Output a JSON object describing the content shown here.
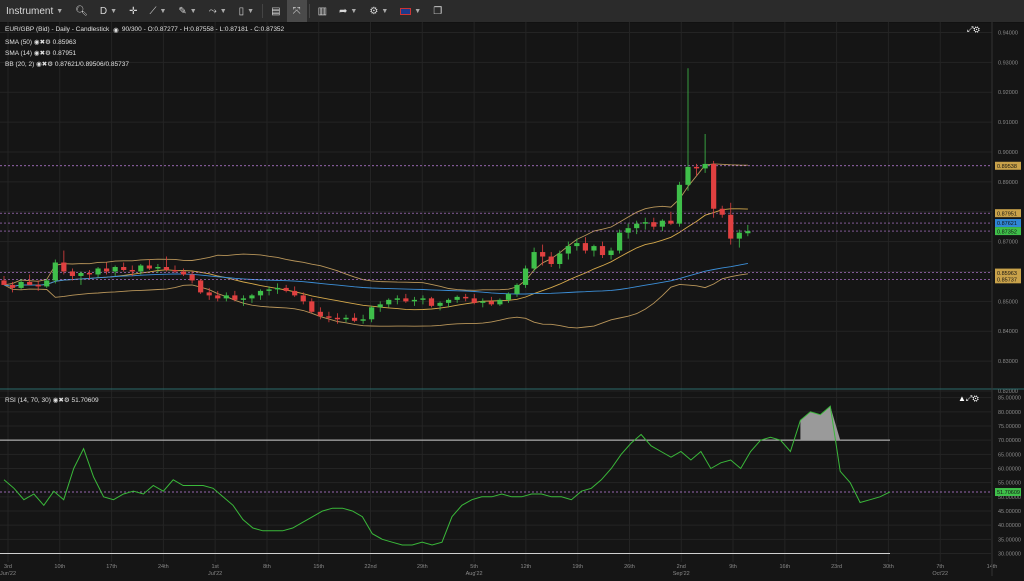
{
  "toolbar": {
    "instrument": "Instrument",
    "period": "D",
    "items": [
      "crosshair-tool",
      "draw-tool",
      "pattern-tool",
      "measure-tool",
      "template-tool",
      "layout-tool",
      "fullscreen-tool",
      "chart-type-tool",
      "share-tool",
      "indicator-tool",
      "language-tool",
      "popout-tool"
    ]
  },
  "legend": {
    "main": "EUR/GBP (Bid) - Daily - Candlestick",
    "main_values": "90/300 - O:0.87277 - H:0.87558 - L:0.87181 - C:0.87352",
    "sma50_label": "SMA (50)",
    "sma50_value": "0.85963",
    "sma14_label": "SMA (14)",
    "sma14_value": "0.87951",
    "bb_label": "BB (20, 2)",
    "bb_value": "0.87621/0.89506/0.85737",
    "rsi_label": "RSI (14, 70, 30)",
    "rsi_value": "51.70609"
  },
  "colors": {
    "up": "#3fbf4a",
    "down": "#e04040",
    "sma50": "#d4a84b",
    "sma14": "#3c8fd8",
    "bb": "#b8955a",
    "rsi": "#3ab83a",
    "dash": "#c080e0"
  },
  "chart_data": {
    "type": "candlestick",
    "instrument": "EUR/GBP (Bid)",
    "yticks": [
      "0.94000",
      "0.93000",
      "0.92000",
      "0.91000",
      "0.90000",
      "0.89000",
      "0.88000",
      "0.87000",
      "0.86000",
      "0.85000",
      "0.84000",
      "0.83000",
      "0.82000"
    ],
    "price_badges": [
      {
        "value": "0.89538",
        "color": "#c9a24a"
      },
      {
        "value": "0.87951",
        "color": "#c9a24a"
      },
      {
        "value": "0.87621",
        "color": "#2f86d6"
      },
      {
        "value": "0.87352",
        "color": "#3fbf4a"
      },
      {
        "value": "0.85963",
        "color": "#c9a24a"
      },
      {
        "value": "0.85737",
        "color": "#c9a24a"
      }
    ],
    "xticks": [
      "3rd\nJun'22",
      "10th",
      "17th",
      "24th",
      "1st\nJul'22",
      "8th",
      "15th",
      "22nd",
      "29th",
      "5th\nAug'22",
      "12th",
      "19th",
      "26th",
      "2nd\nSep'22",
      "9th",
      "16th",
      "23rd",
      "30th",
      "7th\nOct'22",
      "14th"
    ],
    "candles": [
      [
        0.857,
        0.8585,
        0.8555,
        0.8555
      ],
      [
        0.8555,
        0.8565,
        0.853,
        0.8545
      ],
      [
        0.8545,
        0.8575,
        0.854,
        0.8565
      ],
      [
        0.8565,
        0.859,
        0.8555,
        0.8555
      ],
      [
        0.8555,
        0.857,
        0.8535,
        0.855
      ],
      [
        0.855,
        0.8575,
        0.8545,
        0.857
      ],
      [
        0.857,
        0.864,
        0.856,
        0.863
      ],
      [
        0.863,
        0.867,
        0.859,
        0.86
      ],
      [
        0.86,
        0.861,
        0.857,
        0.8585
      ],
      [
        0.8585,
        0.86,
        0.8555,
        0.8595
      ],
      [
        0.8595,
        0.8605,
        0.8575,
        0.859
      ],
      [
        0.859,
        0.8615,
        0.858,
        0.861
      ],
      [
        0.861,
        0.863,
        0.859,
        0.86
      ],
      [
        0.86,
        0.862,
        0.8585,
        0.8615
      ],
      [
        0.8615,
        0.863,
        0.86,
        0.8605
      ],
      [
        0.8605,
        0.862,
        0.8585,
        0.86
      ],
      [
        0.86,
        0.8625,
        0.859,
        0.862
      ],
      [
        0.862,
        0.864,
        0.8605,
        0.861
      ],
      [
        0.861,
        0.8625,
        0.8595,
        0.8615
      ],
      [
        0.8615,
        0.865,
        0.86,
        0.8605
      ],
      [
        0.8605,
        0.862,
        0.8595,
        0.86
      ],
      [
        0.86,
        0.861,
        0.8585,
        0.859
      ],
      [
        0.859,
        0.86,
        0.856,
        0.857
      ],
      [
        0.857,
        0.8575,
        0.8525,
        0.853
      ],
      [
        0.853,
        0.8545,
        0.8505,
        0.852
      ],
      [
        0.852,
        0.8535,
        0.85,
        0.851
      ],
      [
        0.851,
        0.853,
        0.85,
        0.852
      ],
      [
        0.852,
        0.8535,
        0.85,
        0.8505
      ],
      [
        0.8505,
        0.852,
        0.8485,
        0.851
      ],
      [
        0.851,
        0.8525,
        0.8495,
        0.852
      ],
      [
        0.852,
        0.854,
        0.8505,
        0.8535
      ],
      [
        0.8535,
        0.855,
        0.852,
        0.854
      ],
      [
        0.854,
        0.856,
        0.8525,
        0.8545
      ],
      [
        0.8545,
        0.8555,
        0.853,
        0.8535
      ],
      [
        0.8535,
        0.855,
        0.8515,
        0.852
      ],
      [
        0.852,
        0.853,
        0.849,
        0.85
      ],
      [
        0.85,
        0.851,
        0.846,
        0.8465
      ],
      [
        0.8465,
        0.848,
        0.844,
        0.845
      ],
      [
        0.845,
        0.8465,
        0.843,
        0.8445
      ],
      [
        0.8445,
        0.846,
        0.8425,
        0.844
      ],
      [
        0.844,
        0.8455,
        0.843,
        0.8445
      ],
      [
        0.8445,
        0.846,
        0.843,
        0.8435
      ],
      [
        0.8435,
        0.8455,
        0.8425,
        0.844
      ],
      [
        0.844,
        0.8485,
        0.843,
        0.848
      ],
      [
        0.848,
        0.85,
        0.8465,
        0.849
      ],
      [
        0.849,
        0.851,
        0.848,
        0.8505
      ],
      [
        0.8505,
        0.852,
        0.849,
        0.851
      ],
      [
        0.851,
        0.8525,
        0.8495,
        0.85
      ],
      [
        0.85,
        0.8515,
        0.8485,
        0.8505
      ],
      [
        0.8505,
        0.852,
        0.849,
        0.851
      ],
      [
        0.851,
        0.8515,
        0.848,
        0.8485
      ],
      [
        0.8485,
        0.85,
        0.847,
        0.8495
      ],
      [
        0.8495,
        0.851,
        0.848,
        0.8505
      ],
      [
        0.8505,
        0.852,
        0.8495,
        0.8515
      ],
      [
        0.8515,
        0.8525,
        0.85,
        0.851
      ],
      [
        0.851,
        0.8525,
        0.849,
        0.8495
      ],
      [
        0.8495,
        0.851,
        0.848,
        0.85
      ],
      [
        0.85,
        0.8515,
        0.8485,
        0.849
      ],
      [
        0.849,
        0.851,
        0.8485,
        0.8505
      ],
      [
        0.8505,
        0.853,
        0.8495,
        0.8525
      ],
      [
        0.8525,
        0.856,
        0.8515,
        0.8555
      ],
      [
        0.8555,
        0.862,
        0.8545,
        0.861
      ],
      [
        0.861,
        0.868,
        0.86,
        0.8665
      ],
      [
        0.8665,
        0.869,
        0.862,
        0.865
      ],
      [
        0.865,
        0.8665,
        0.8615,
        0.8625
      ],
      [
        0.8625,
        0.867,
        0.861,
        0.866
      ],
      [
        0.866,
        0.87,
        0.864,
        0.8685
      ],
      [
        0.8685,
        0.871,
        0.867,
        0.8695
      ],
      [
        0.8695,
        0.8715,
        0.866,
        0.867
      ],
      [
        0.867,
        0.869,
        0.865,
        0.8685
      ],
      [
        0.8685,
        0.87,
        0.8645,
        0.8655
      ],
      [
        0.8655,
        0.868,
        0.864,
        0.867
      ],
      [
        0.867,
        0.874,
        0.866,
        0.873
      ],
      [
        0.873,
        0.876,
        0.871,
        0.8745
      ],
      [
        0.8745,
        0.877,
        0.8725,
        0.876
      ],
      [
        0.876,
        0.878,
        0.874,
        0.8765
      ],
      [
        0.8765,
        0.878,
        0.874,
        0.875
      ],
      [
        0.875,
        0.8775,
        0.8735,
        0.877
      ],
      [
        0.877,
        0.88,
        0.8755,
        0.876
      ],
      [
        0.876,
        0.89,
        0.875,
        0.889
      ],
      [
        0.889,
        0.928,
        0.887,
        0.895
      ],
      [
        0.895,
        0.896,
        0.892,
        0.8945
      ],
      [
        0.8945,
        0.906,
        0.893,
        0.896
      ],
      [
        0.896,
        0.897,
        0.878,
        0.881
      ],
      [
        0.881,
        0.882,
        0.878,
        0.879
      ],
      [
        0.879,
        0.883,
        0.869,
        0.871
      ],
      [
        0.871,
        0.874,
        0.868,
        0.873
      ],
      [
        0.8728,
        0.8756,
        0.8718,
        0.8735
      ]
    ],
    "rsi_yticks": [
      "85.00000",
      "80.00000",
      "75.00000",
      "70.00000",
      "65.00000",
      "60.00000",
      "55.00000",
      "50.00000",
      "45.00000",
      "40.00000",
      "35.00000",
      "30.00000"
    ],
    "rsi_levels": [
      70,
      30
    ],
    "rsi_last": "51.70609",
    "rsi": [
      56,
      53,
      49,
      51,
      47,
      52,
      49,
      60,
      67,
      57,
      50,
      49,
      51,
      52,
      51,
      54,
      52,
      56,
      54,
      54,
      54,
      53,
      50,
      47,
      42,
      39,
      38,
      38,
      38,
      39,
      41,
      43,
      45,
      46,
      46,
      45,
      43,
      37,
      35,
      34,
      33,
      33,
      34,
      33,
      34,
      43,
      47,
      49,
      50,
      50,
      51,
      50,
      50,
      51,
      51,
      50,
      50,
      49,
      52,
      53,
      56,
      60,
      65,
      69,
      72,
      68,
      66,
      64,
      66,
      63,
      66,
      60,
      62,
      63,
      60,
      66,
      70,
      71,
      70,
      66,
      77,
      80,
      79,
      82,
      59,
      55,
      48,
      49,
      50,
      51.7
    ]
  }
}
